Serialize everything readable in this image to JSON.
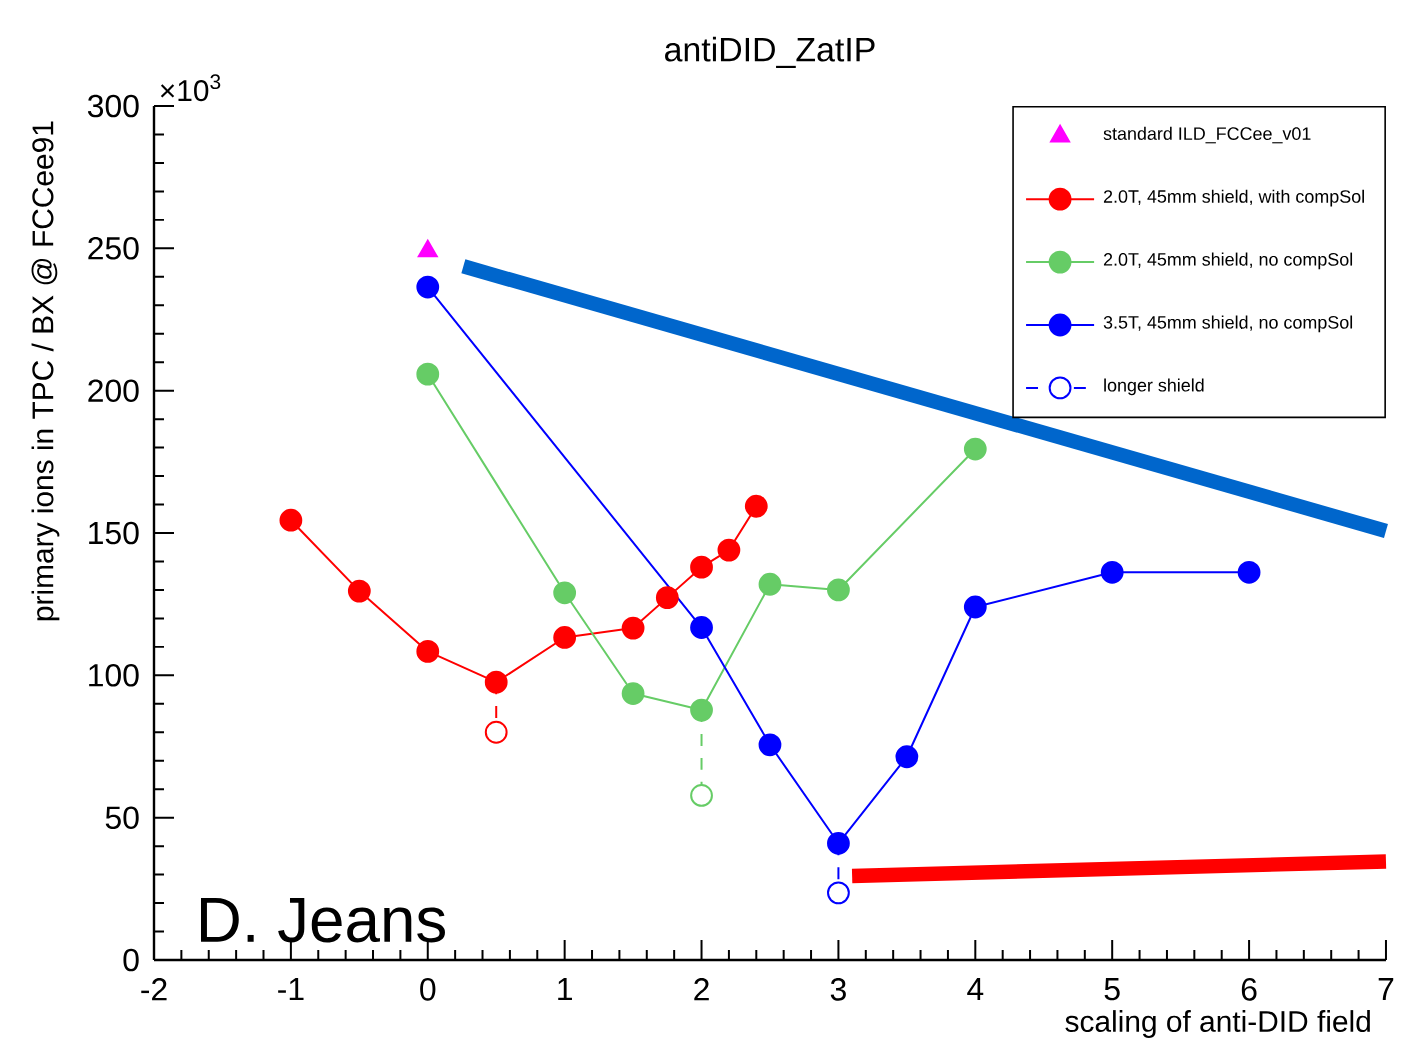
{
  "chart_data": {
    "type": "line",
    "title": "antiDID_ZatIP",
    "xlabel": "scaling of anti-DID field",
    "ylabel": "primary ions in TPC / BX @ FCCee91",
    "xlim": [
      -2,
      7
    ],
    "ylim": [
      0,
      300
    ],
    "xticks": [
      -2,
      -1,
      0,
      1,
      2,
      3,
      4,
      5,
      6,
      7
    ],
    "yticks": [
      0,
      50,
      100,
      150,
      200,
      250,
      300
    ],
    "legend": "top right",
    "marker": "circle",
    "annotations": [
      "×10$^{3}$",
      "D. Jeans"
    ],
    "series": [
      {
        "name": "standard ILD_FCCee_v01",
        "type": "scatter",
        "marker": "triangle",
        "color": "#ff00ff",
        "x": [
          0
        ],
        "values": [
          249
        ]
      },
      {
        "name": "2.0T, 45mm shield, with compSol",
        "color": "#ff0000",
        "x": [
          -1,
          -0.5,
          0,
          0.5,
          1,
          1.5,
          1.75,
          2,
          2.2,
          2.4
        ],
        "values": [
          154.5,
          129.6,
          108.4,
          97.6,
          113.3,
          116.6,
          127.3,
          138,
          144,
          159.4
        ]
      },
      {
        "name": "2.0T, 45mm shield, no compSol",
        "color": "#66cc66",
        "x": [
          0,
          1,
          1.5,
          2,
          2.5,
          3,
          4
        ],
        "values": [
          205.8,
          129,
          93.6,
          87.8,
          132,
          130,
          179.5
        ]
      },
      {
        "name": "3.5T, 45mm shield, no compSol",
        "color": "#0000ff",
        "x": [
          0,
          2,
          2.5,
          3,
          3.5,
          4,
          5,
          6
        ],
        "values": [
          236.4,
          116.8,
          75.6,
          41,
          71.4,
          124,
          136.2,
          136.2
        ]
      },
      {
        "name": "longer shield",
        "color": "#0000ff",
        "line_style": "dashed",
        "x": [
          3,
          3
        ],
        "values": [
          41,
          23.6
        ]
      },
      {
        "color": "#ff0000",
        "line_style": "dashed",
        "x": [
          0.5,
          0.5
        ],
        "values": [
          97.6,
          80
        ]
      },
      {
        "color": "#66cc66",
        "line_style": "dashed",
        "x": [
          2,
          2
        ],
        "values": [
          87.8,
          57.8
        ]
      },
      {
        "color": "#0066cc",
        "marker": "none",
        "x": [
          0.26,
          7
        ],
        "values": [
          243.7,
          150.7
        ]
      },
      {
        "color": "#ff0000",
        "marker": "none",
        "x": [
          3.1,
          7
        ],
        "values": [
          29.5,
          34.6
        ]
      }
    ]
  }
}
